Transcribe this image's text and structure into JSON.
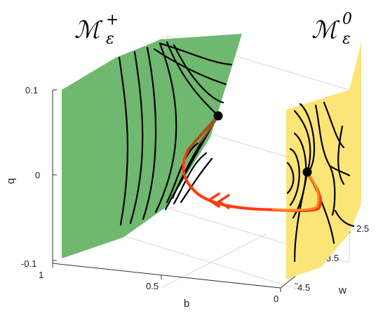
{
  "chart_data": {
    "type": "3d-surface-trajectory",
    "axes": {
      "q": {
        "label": "q",
        "ticks": [
          "0.1",
          "0",
          "-0.1"
        ],
        "range": [
          -0.1,
          0.1
        ]
      },
      "b": {
        "label": "b",
        "ticks": [
          "1",
          "0.5",
          "0"
        ],
        "range": [
          0,
          1
        ]
      },
      "w": {
        "label": "w",
        "ticks": [
          "2.5",
          "3.5",
          "4.5"
        ],
        "range": [
          2.5,
          4.5
        ]
      }
    },
    "grid": true,
    "surfaces": [
      {
        "name_base": "ℳ",
        "name_sub": "ε",
        "name_sup": "+",
        "color": "#6fb86f"
      },
      {
        "name_base": "ℳ",
        "name_sub": "ε",
        "name_sup": "0",
        "color": "#fbe577"
      }
    ],
    "trajectory_color": "#ff3a10",
    "orbit_color": "#000000"
  }
}
